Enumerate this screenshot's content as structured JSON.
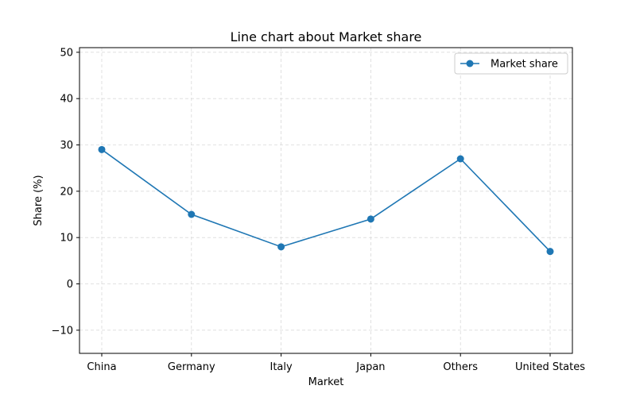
{
  "chart_data": {
    "type": "line",
    "title": "Line chart about Market share",
    "xlabel": "Market",
    "ylabel": "Share (%)",
    "categories": [
      "China",
      "Germany",
      "Italy",
      "Japan",
      "Others",
      "United States"
    ],
    "series": [
      {
        "name": "Market share",
        "values": [
          29,
          15,
          8,
          14,
          27,
          7
        ],
        "color": "#1f77b4"
      }
    ],
    "ylim": [
      -15,
      51
    ],
    "yticks": [
      -10,
      0,
      10,
      20,
      30,
      40,
      50
    ],
    "ytick_labels": [
      "−10",
      "0",
      "10",
      "20",
      "30",
      "40",
      "50"
    ],
    "grid": true,
    "legend_position": "top-right"
  }
}
